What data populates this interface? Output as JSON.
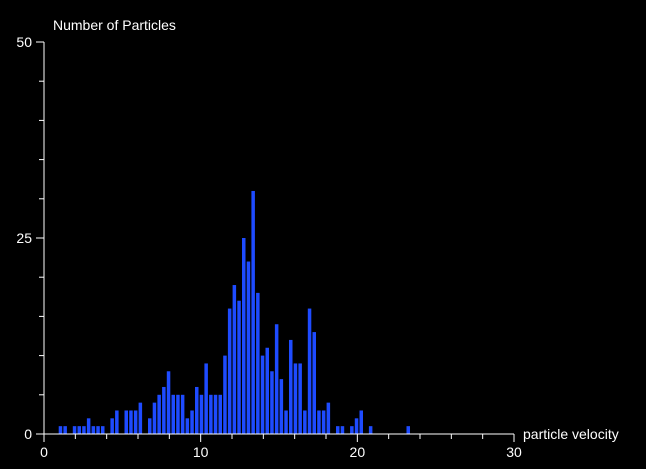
{
  "chart_data": {
    "type": "bar",
    "ylabel": "Number of Particles",
    "xlabel": "particle velocity",
    "xlim": [
      0,
      30
    ],
    "ylim": [
      0,
      50
    ],
    "xticks": [
      "0",
      "10",
      "20",
      "30"
    ],
    "yticks": [
      "0",
      "25",
      "50"
    ],
    "bin_width": 0.3,
    "bar_color": "#1e4bff",
    "axis_color": "#ffffff",
    "background": "#000000",
    "grid": false,
    "legend": "none",
    "x": [
      1.05,
      1.35,
      1.65,
      1.95,
      2.25,
      2.55,
      2.85,
      3.15,
      3.45,
      3.75,
      4.05,
      4.35,
      4.65,
      4.95,
      5.25,
      5.55,
      5.85,
      6.15,
      6.45,
      6.75,
      7.05,
      7.35,
      7.65,
      7.95,
      8.25,
      8.55,
      8.85,
      9.15,
      9.45,
      9.75,
      10.05,
      10.35,
      10.65,
      10.95,
      11.25,
      11.55,
      11.85,
      12.15,
      12.45,
      12.75,
      13.05,
      13.35,
      13.65,
      13.95,
      14.25,
      14.55,
      14.85,
      15.15,
      15.45,
      15.75,
      16.05,
      16.35,
      16.65,
      16.95,
      17.25,
      17.55,
      17.85,
      18.15,
      18.45,
      18.75,
      19.05,
      19.35,
      19.65,
      19.95,
      20.25,
      20.55,
      20.85,
      21.15,
      21.45,
      21.75,
      22.05,
      22.35,
      22.65,
      22.95,
      23.25,
      23.55,
      23.85,
      24.15,
      24.45,
      24.75,
      25.05,
      25.35,
      25.65,
      25.95,
      26.25,
      26.55,
      26.85,
      27.15,
      27.45,
      27.75,
      28.05,
      28.35,
      28.65,
      28.95,
      29.25,
      29.55,
      29.85
    ],
    "values": [
      1,
      1,
      0,
      1,
      1,
      1,
      2,
      1,
      1,
      1,
      0,
      2,
      3,
      0,
      3,
      3,
      3,
      4,
      0,
      2,
      4,
      5,
      6,
      8,
      5,
      5,
      5,
      2,
      3,
      6,
      5,
      9,
      5,
      5,
      5,
      10,
      16,
      19,
      17,
      25,
      22,
      31,
      18,
      10,
      11,
      8,
      14,
      7,
      3,
      12,
      9,
      9,
      3,
      16,
      13,
      3,
      3,
      4,
      0,
      1,
      1,
      0,
      1,
      2,
      3,
      0,
      1,
      0,
      0,
      0,
      0,
      0,
      0,
      0,
      1,
      0,
      0,
      0,
      0,
      0,
      0,
      0,
      0,
      0,
      0,
      0,
      0,
      0,
      0,
      0,
      0,
      0,
      0,
      0,
      0,
      0,
      0
    ]
  }
}
